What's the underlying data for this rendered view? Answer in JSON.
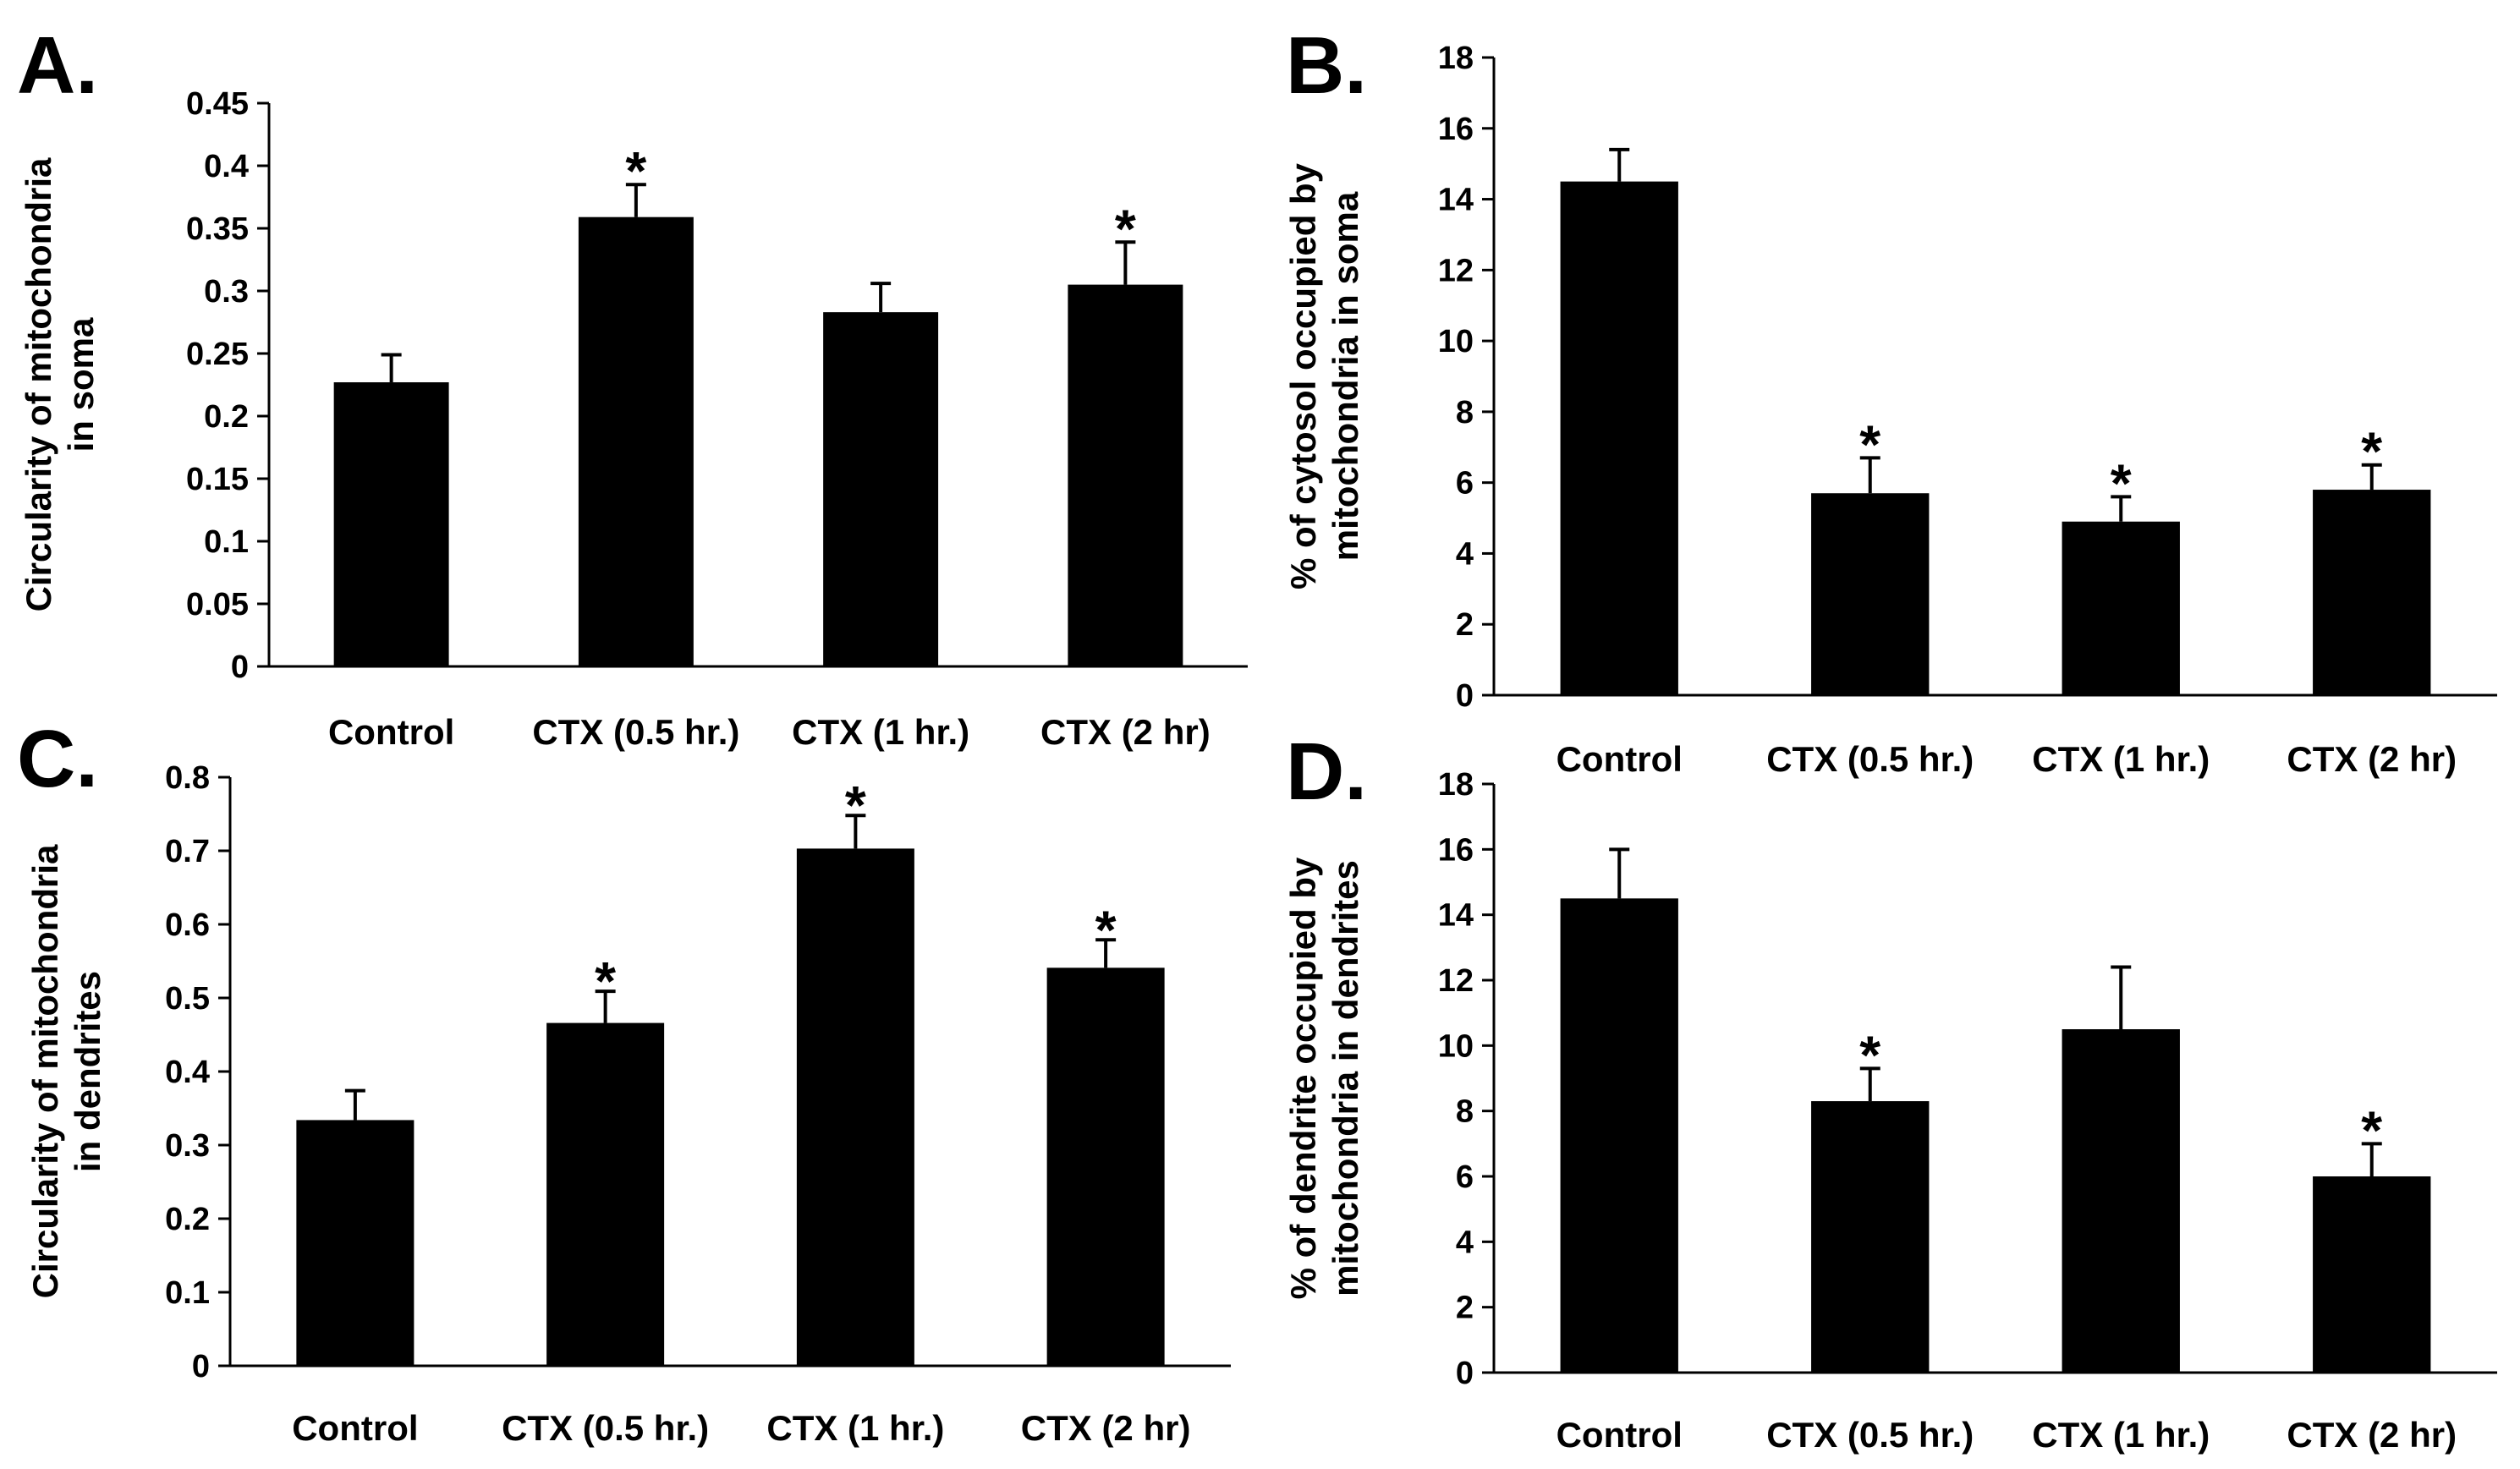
{
  "figure": {
    "bar_color": "#000000",
    "background": "#ffffff"
  },
  "chart_data": [
    {
      "panel": "A.",
      "type": "bar",
      "categories": [
        "Control",
        "CTX (0.5 hr.)",
        "CTX (1 hr.)",
        "CTX (2 hr)"
      ],
      "values": [
        0.227,
        0.359,
        0.283,
        0.305
      ],
      "errors": [
        0.022,
        0.026,
        0.023,
        0.034
      ],
      "significant": [
        "",
        "*",
        "",
        "*"
      ],
      "ylabel": [
        "Circularity of mitochondria",
        "in soma"
      ],
      "ylim": [
        0,
        0.45
      ],
      "yticks": [
        "0",
        "0.05",
        "0.1",
        "0.15",
        "0.2",
        "0.25",
        "0.3",
        "0.35",
        "0.4",
        "0.45"
      ]
    },
    {
      "panel": "B.",
      "type": "bar",
      "categories": [
        "Control",
        "CTX (0.5 hr.)",
        "CTX (1 hr.)",
        "CTX (2 hr)"
      ],
      "values": [
        14.5,
        5.7,
        4.9,
        5.8
      ],
      "errors": [
        0.9,
        1.0,
        0.7,
        0.7
      ],
      "significant": [
        "",
        "*",
        "*",
        "*"
      ],
      "ylabel": [
        "% of cytosol occupied by",
        "mitochondria in soma"
      ],
      "ylim": [
        0,
        18
      ],
      "yticks": [
        "0",
        "2",
        "4",
        "6",
        "8",
        "10",
        "12",
        "14",
        "16",
        "18"
      ]
    },
    {
      "panel": "C.",
      "type": "bar",
      "categories": [
        "Control",
        "CTX (0.5 hr.)",
        "CTX (1 hr.)",
        "CTX (2 hr)"
      ],
      "values": [
        0.334,
        0.466,
        0.703,
        0.541
      ],
      "errors": [
        0.04,
        0.043,
        0.045,
        0.038
      ],
      "significant": [
        "",
        "*",
        "*",
        "*"
      ],
      "ylabel": [
        "Circularity of mitochondria",
        "in dendrites"
      ],
      "ylim": [
        0,
        0.8
      ],
      "yticks": [
        "0",
        "0.1",
        "0.2",
        "0.3",
        "0.4",
        "0.5",
        "0.6",
        "0.7",
        "0.8"
      ]
    },
    {
      "panel": "D.",
      "type": "bar",
      "categories": [
        "Control",
        "CTX (0.5 hr.)",
        "CTX (1 hr.)",
        "CTX (2 hr)"
      ],
      "values": [
        14.5,
        8.3,
        10.5,
        6.0
      ],
      "errors": [
        1.5,
        1.0,
        1.9,
        1.0
      ],
      "significant": [
        "",
        "*",
        "",
        "*"
      ],
      "ylabel": [
        "% of dendrite occupied by",
        "mitochondria in dendrites"
      ],
      "ylim": [
        0,
        18
      ],
      "yticks": [
        "0",
        "2",
        "4",
        "6",
        "8",
        "10",
        "12",
        "14",
        "16",
        "18"
      ]
    }
  ]
}
